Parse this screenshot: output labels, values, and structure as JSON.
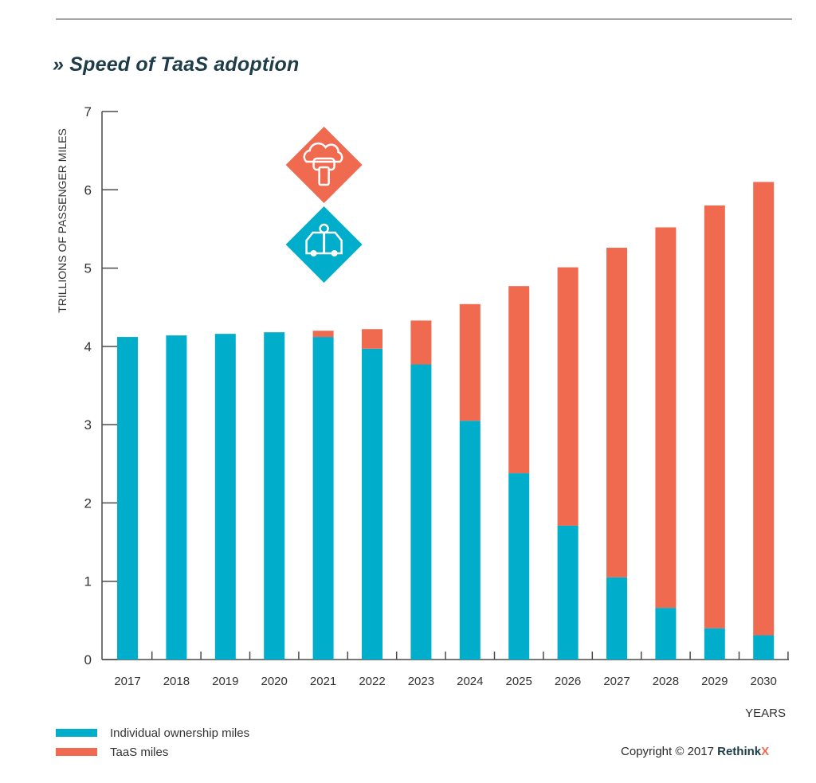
{
  "title": "» Speed of TaaS adoption",
  "colors": {
    "individual": "#00aecb",
    "taas": "#f06a50",
    "axis": "#4a4a4a",
    "text": "#333333"
  },
  "icons": {
    "upper": "cloud-car-phone-icon",
    "lower": "car-key-icon"
  },
  "chart_data": {
    "type": "bar",
    "stacked": true,
    "categories": [
      "2017",
      "2018",
      "2019",
      "2020",
      "2021",
      "2022",
      "2023",
      "2024",
      "2025",
      "2026",
      "2027",
      "2028",
      "2029",
      "2030"
    ],
    "series": [
      {
        "name": "Individual ownership miles",
        "values": [
          4.12,
          4.14,
          4.16,
          4.18,
          4.12,
          3.97,
          3.77,
          3.05,
          2.38,
          1.71,
          1.05,
          0.66,
          0.4,
          0.31
        ]
      },
      {
        "name": "TaaS miles",
        "values": [
          0.0,
          0.0,
          0.0,
          0.0,
          0.08,
          0.25,
          0.56,
          1.49,
          2.39,
          3.3,
          4.21,
          4.86,
          5.4,
          5.79
        ]
      }
    ],
    "title": "» Speed of TaaS adoption",
    "xlabel": "YEARS",
    "ylabel": "TRILLIONS  OF PASSENGER MILES",
    "ylim": [
      0,
      7
    ],
    "yticks": [
      "0",
      "1",
      "2",
      "3",
      "4",
      "5",
      "6",
      "7"
    ],
    "grid": false,
    "legend_position": "bottom-left"
  },
  "copyright": {
    "prefix": "Copyright © 2017 ",
    "brand": "Rethink",
    "brand_x": "X"
  }
}
